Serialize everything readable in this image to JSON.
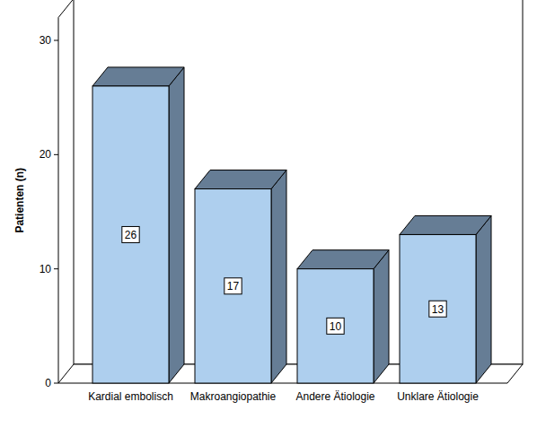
{
  "chart_data": {
    "type": "bar",
    "y_label": "Patienten (n)",
    "categories": [
      "Kardial embolisch",
      "Makroangiopathie",
      "Andere Ätiologie",
      "Unklare Ätiologie"
    ],
    "values": [
      26,
      17,
      10,
      13
    ],
    "color": "#aecfee",
    "ylim": [
      0,
      32
    ],
    "yticks": [
      0,
      10,
      20,
      30
    ],
    "grid": false,
    "data_labels": true
  }
}
